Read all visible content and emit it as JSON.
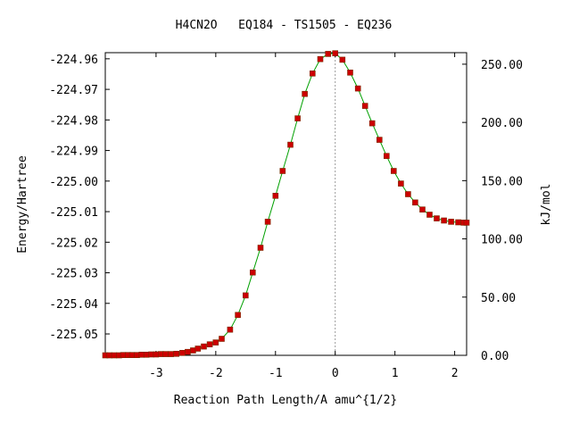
{
  "chart_data": {
    "type": "line",
    "title": "H4CN2O   EQ184 - TS1505 - EQ236",
    "xlabel": "Reaction Path Length/A amu^{1/2}",
    "ylabel": "Energy/Hartree",
    "y2label": "kJ/mol",
    "xlim": [
      -3.85,
      2.2
    ],
    "ylim": [
      -225.057,
      -224.958
    ],
    "y2lim": [
      0,
      259.9
    ],
    "grid": false,
    "legend": "none",
    "ts_marker_x": 0.0,
    "x_ticks": [
      {
        "v": -3,
        "label": "-3"
      },
      {
        "v": -2,
        "label": "-2"
      },
      {
        "v": -1,
        "label": "-1"
      },
      {
        "v": 0,
        "label": "0"
      },
      {
        "v": 1,
        "label": "1"
      },
      {
        "v": 2,
        "label": "2"
      }
    ],
    "y_ticks": [
      {
        "v": -224.96,
        "label": "-224.96"
      },
      {
        "v": -224.97,
        "label": "-224.97"
      },
      {
        "v": -224.98,
        "label": "-224.98"
      },
      {
        "v": -224.99,
        "label": "-224.99"
      },
      {
        "v": -225.0,
        "label": "-225.00"
      },
      {
        "v": -225.01,
        "label": "-225.01"
      },
      {
        "v": -225.02,
        "label": "-225.02"
      },
      {
        "v": -225.03,
        "label": "-225.03"
      },
      {
        "v": -225.04,
        "label": "-225.04"
      },
      {
        "v": -225.05,
        "label": "-225.05"
      }
    ],
    "y2_ticks": [
      {
        "v": 0,
        "label": "0.00"
      },
      {
        "v": 50,
        "label": "50.00"
      },
      {
        "v": 100,
        "label": "100.00"
      },
      {
        "v": 150,
        "label": "150.00"
      },
      {
        "v": 200,
        "label": "200.00"
      },
      {
        "v": 250,
        "label": "250.00"
      }
    ],
    "series": [
      {
        "line_color": "#00a000",
        "marker_color": "#cc0000",
        "points": [
          [
            -3.85,
            -225.057
          ],
          [
            -3.78,
            -225.057
          ],
          [
            -3.7,
            -225.057
          ],
          [
            -3.62,
            -225.057
          ],
          [
            -3.55,
            -225.0569
          ],
          [
            -3.47,
            -225.0569
          ],
          [
            -3.4,
            -225.0569
          ],
          [
            -3.32,
            -225.0569
          ],
          [
            -3.24,
            -225.0568
          ],
          [
            -3.16,
            -225.0568
          ],
          [
            -3.08,
            -225.0567
          ],
          [
            -3.0,
            -225.0567
          ],
          [
            -2.92,
            -225.0566
          ],
          [
            -2.84,
            -225.0566
          ],
          [
            -2.75,
            -225.0566
          ],
          [
            -2.66,
            -225.0565
          ],
          [
            -2.56,
            -225.0562
          ],
          [
            -2.47,
            -225.0559
          ],
          [
            -2.38,
            -225.0554
          ],
          [
            -2.3,
            -225.0548
          ],
          [
            -2.2,
            -225.0541
          ],
          [
            -2.1,
            -225.0534
          ],
          [
            -2.0,
            -225.0528
          ],
          [
            -1.9,
            -225.0516
          ],
          [
            -1.76,
            -225.0486
          ],
          [
            -1.63,
            -225.0438
          ],
          [
            -1.5,
            -225.0374
          ],
          [
            -1.38,
            -225.0299
          ],
          [
            -1.25,
            -225.0218
          ],
          [
            -1.13,
            -225.0133
          ],
          [
            -1.0,
            -225.0048
          ],
          [
            -0.88,
            -224.9967
          ],
          [
            -0.75,
            -224.9881
          ],
          [
            -0.63,
            -224.9795
          ],
          [
            -0.51,
            -224.9715
          ],
          [
            -0.38,
            -224.9648
          ],
          [
            -0.25,
            -224.9601
          ],
          [
            -0.12,
            -224.9584
          ],
          [
            0.0,
            -224.9582
          ],
          [
            0.12,
            -224.9603
          ],
          [
            0.25,
            -224.9645
          ],
          [
            0.38,
            -224.9697
          ],
          [
            0.5,
            -224.9754
          ],
          [
            0.62,
            -224.9811
          ],
          [
            0.74,
            -224.9865
          ],
          [
            0.86,
            -224.9918
          ],
          [
            0.98,
            -224.9967
          ],
          [
            1.1,
            -225.0008
          ],
          [
            1.22,
            -225.0043
          ],
          [
            1.34,
            -225.007
          ],
          [
            1.46,
            -225.0093
          ],
          [
            1.58,
            -225.011
          ],
          [
            1.7,
            -225.0122
          ],
          [
            1.82,
            -225.0129
          ],
          [
            1.94,
            -225.0133
          ],
          [
            2.06,
            -225.0135
          ],
          [
            2.15,
            -225.0136
          ],
          [
            2.2,
            -225.0136
          ]
        ]
      }
    ]
  }
}
